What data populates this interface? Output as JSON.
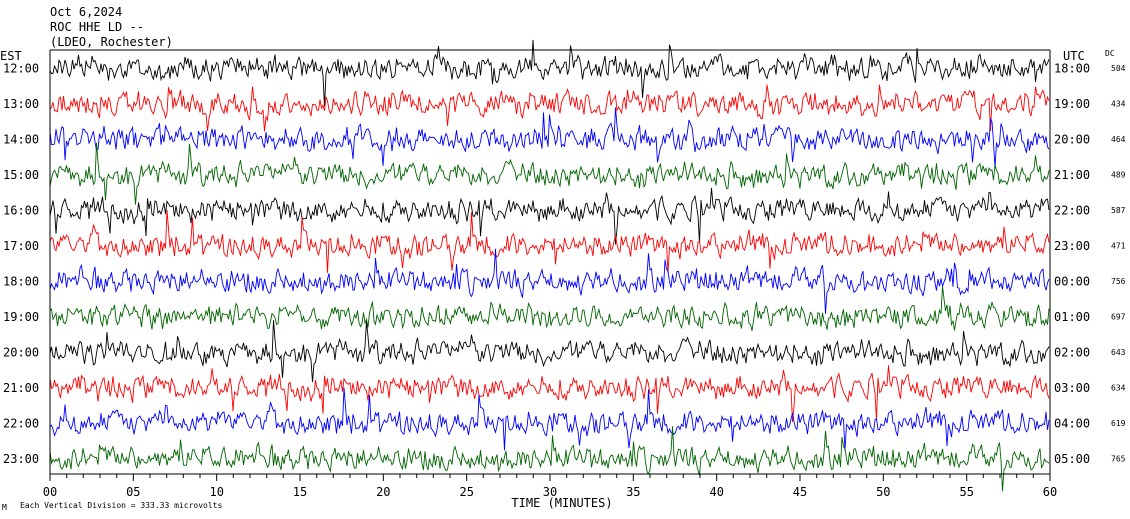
{
  "header": {
    "date": "Oct 6,2024",
    "station": "ROC HHE LD --",
    "network": "(LDEO, Rochester)"
  },
  "left_axis_title": "EST",
  "right_axis_title": "UTC",
  "dc_title": "DC",
  "footer": {
    "xlabel": "TIME (MINUTES)",
    "scale_note": "Each Vertical Division =  333.33 microvolts",
    "mark": "M"
  },
  "colors": {
    "black": "#000000",
    "red": "#ff0000",
    "blue": "#0000ff",
    "green": "#006400"
  },
  "chart_data": {
    "type": "line",
    "xlabel": "TIME (MINUTES)",
    "xlim": [
      0,
      60
    ],
    "x_ticks": [
      "00",
      "05",
      "10",
      "15",
      "20",
      "25",
      "30",
      "35",
      "40",
      "45",
      "50",
      "55",
      "60"
    ],
    "rows": [
      {
        "est": "12:00",
        "utc": "18:00",
        "dc": "504",
        "color": "black"
      },
      {
        "est": "13:00",
        "utc": "19:00",
        "dc": "434",
        "color": "red"
      },
      {
        "est": "14:00",
        "utc": "20:00",
        "dc": "464",
        "color": "blue"
      },
      {
        "est": "15:00",
        "utc": "21:00",
        "dc": "489",
        "color": "green"
      },
      {
        "est": "16:00",
        "utc": "22:00",
        "dc": "587",
        "color": "black"
      },
      {
        "est": "17:00",
        "utc": "23:00",
        "dc": "471",
        "color": "red"
      },
      {
        "est": "18:00",
        "utc": "00:00",
        "dc": "756",
        "color": "blue"
      },
      {
        "est": "19:00",
        "utc": "01:00",
        "dc": "697",
        "color": "green"
      },
      {
        "est": "20:00",
        "utc": "02:00",
        "dc": "643",
        "color": "black"
      },
      {
        "est": "21:00",
        "utc": "03:00",
        "dc": "634",
        "color": "red"
      },
      {
        "est": "22:00",
        "utc": "04:00",
        "dc": "619",
        "color": "blue"
      },
      {
        "est": "23:00",
        "utc": "05:00",
        "dc": "765",
        "color": "green"
      }
    ]
  }
}
